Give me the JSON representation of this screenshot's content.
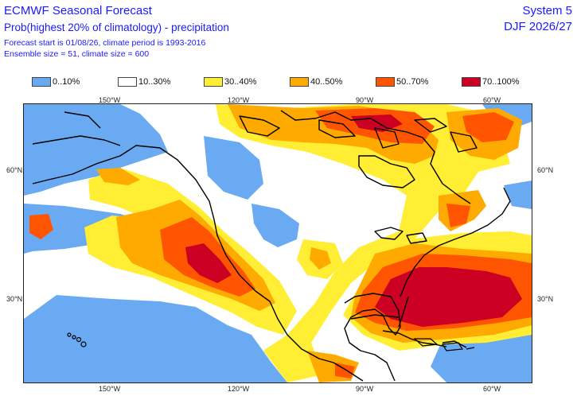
{
  "header": {
    "title": "ECMWF Seasonal Forecast",
    "subtitle": "Prob(highest 20% of climatology) - precipitation",
    "forecast_start": "Forecast start is 01/08/26, climate period is 1993-2016",
    "ensemble": "Ensemble size = 51, climate size = 600",
    "system": "System 5",
    "season": "DJF 2026/27"
  },
  "legend": [
    {
      "label": "0..10%",
      "color": "#6aaaf2"
    },
    {
      "label": "10..30%",
      "color": "#ffffff"
    },
    {
      "label": "30..40%",
      "color": "#ffee33"
    },
    {
      "label": "40..50%",
      "color": "#ffaa00"
    },
    {
      "label": "50..70%",
      "color": "#ff5500"
    },
    {
      "label": "70..100%",
      "color": "#cc0022"
    }
  ],
  "axes": {
    "top_lon": [
      "150°W",
      "120°W",
      "90°W",
      "60°W"
    ],
    "bottom_lon": [
      "150°W",
      "120°W",
      "90°W",
      "60°W"
    ],
    "left_lat": [
      "60°N",
      "30°N"
    ],
    "right_lat": [
      "60°N",
      "30°N"
    ]
  },
  "map": {
    "region": "North America",
    "palette": {
      "blue": "#6aaaf2",
      "yellow": "#ffee33",
      "orange": "#ffaa00",
      "redorange": "#ff5500",
      "red": "#cc0022",
      "coast": "#000000"
    }
  }
}
